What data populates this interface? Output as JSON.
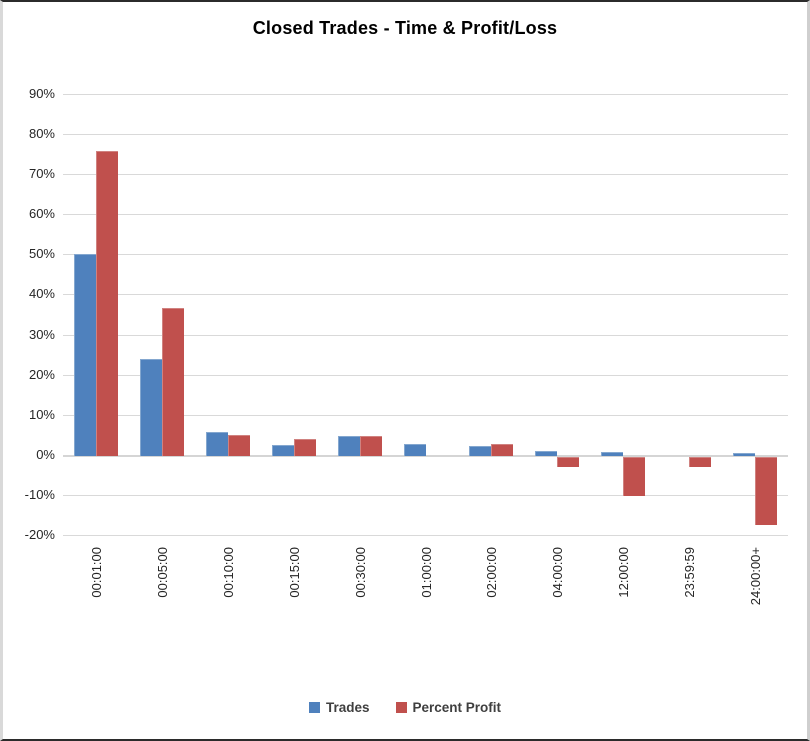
{
  "chart_data": {
    "type": "bar",
    "title": "Closed Trades - Time & Profit/Loss",
    "categories": [
      "00:01:00",
      "00:05:00",
      "00:10:00",
      "00:15:00",
      "00:30:00",
      "01:00:00",
      "02:00:00",
      "04:00:00",
      "12:00:00",
      "23:59:59",
      "24:00:00+"
    ],
    "series": [
      {
        "name": "Trades",
        "color": "#4F81BD",
        "edge_color": "#84a7cf",
        "values": [
          50.5,
          24.3,
          6.0,
          2.7,
          5.1,
          3.0,
          2.6,
          1.3,
          1.0,
          0,
          0.8
        ]
      },
      {
        "name": "Percent Profit",
        "color": "#C0504D",
        "edge_color": "#d08280",
        "values": [
          76.0,
          37.0,
          5.3,
          4.3,
          5.1,
          0,
          2.9,
          -2.4,
          -9.7,
          -2.6,
          -17.0
        ]
      }
    ],
    "xlabel": "",
    "ylabel": "",
    "ylim": [
      -20,
      90
    ],
    "ytick_step": 10,
    "ytick_labels": [
      "90%",
      "80%",
      "70%",
      "60%",
      "50%",
      "40%",
      "30%",
      "20%",
      "10%",
      "0%",
      "-10%",
      "-20%"
    ],
    "grid": true,
    "grid_color": "#d9d9d9",
    "axis_line_color": "#d5d5d5",
    "legend_position": "bottom",
    "x_tick_rotation": -90,
    "background": "#ffffff"
  }
}
